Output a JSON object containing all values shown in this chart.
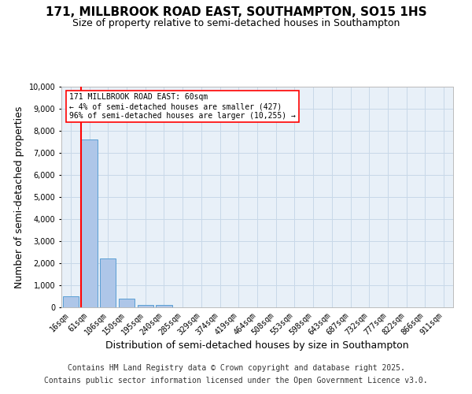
{
  "title": "171, MILLBROOK ROAD EAST, SOUTHAMPTON, SO15 1HS",
  "subtitle": "Size of property relative to semi-detached houses in Southampton",
  "xlabel": "Distribution of semi-detached houses by size in Southampton",
  "ylabel": "Number of semi-detached properties",
  "footer_line1": "Contains HM Land Registry data © Crown copyright and database right 2025.",
  "footer_line2": "Contains public sector information licensed under the Open Government Licence v3.0.",
  "annotation_line1": "171 MILLBROOK ROAD EAST: 60sqm",
  "annotation_line2": "← 4% of semi-detached houses are smaller (427)",
  "annotation_line3": "96% of semi-detached houses are larger (10,255) →",
  "bar_labels": [
    "16sqm",
    "61sqm",
    "106sqm",
    "150sqm",
    "195sqm",
    "240sqm",
    "285sqm",
    "329sqm",
    "374sqm",
    "419sqm",
    "464sqm",
    "508sqm",
    "553sqm",
    "598sqm",
    "643sqm",
    "687sqm",
    "732sqm",
    "777sqm",
    "822sqm",
    "866sqm",
    "911sqm"
  ],
  "bar_values": [
    500,
    7600,
    2200,
    400,
    100,
    100,
    0,
    0,
    0,
    0,
    0,
    0,
    0,
    0,
    0,
    0,
    0,
    0,
    0,
    0,
    0
  ],
  "bar_color": "#aec6e8",
  "bar_edge_color": "#5a9fd4",
  "red_line_index": 1,
  "ylim": [
    0,
    10000
  ],
  "yticks": [
    0,
    1000,
    2000,
    3000,
    4000,
    5000,
    6000,
    7000,
    8000,
    9000,
    10000
  ],
  "background_color": "#ffffff",
  "plot_bg_color": "#e8f0f8",
  "grid_color": "#c8d8e8",
  "title_fontsize": 11,
  "subtitle_fontsize": 9,
  "axis_label_fontsize": 9,
  "tick_fontsize": 7,
  "footer_fontsize": 7,
  "annotation_fontsize": 7
}
